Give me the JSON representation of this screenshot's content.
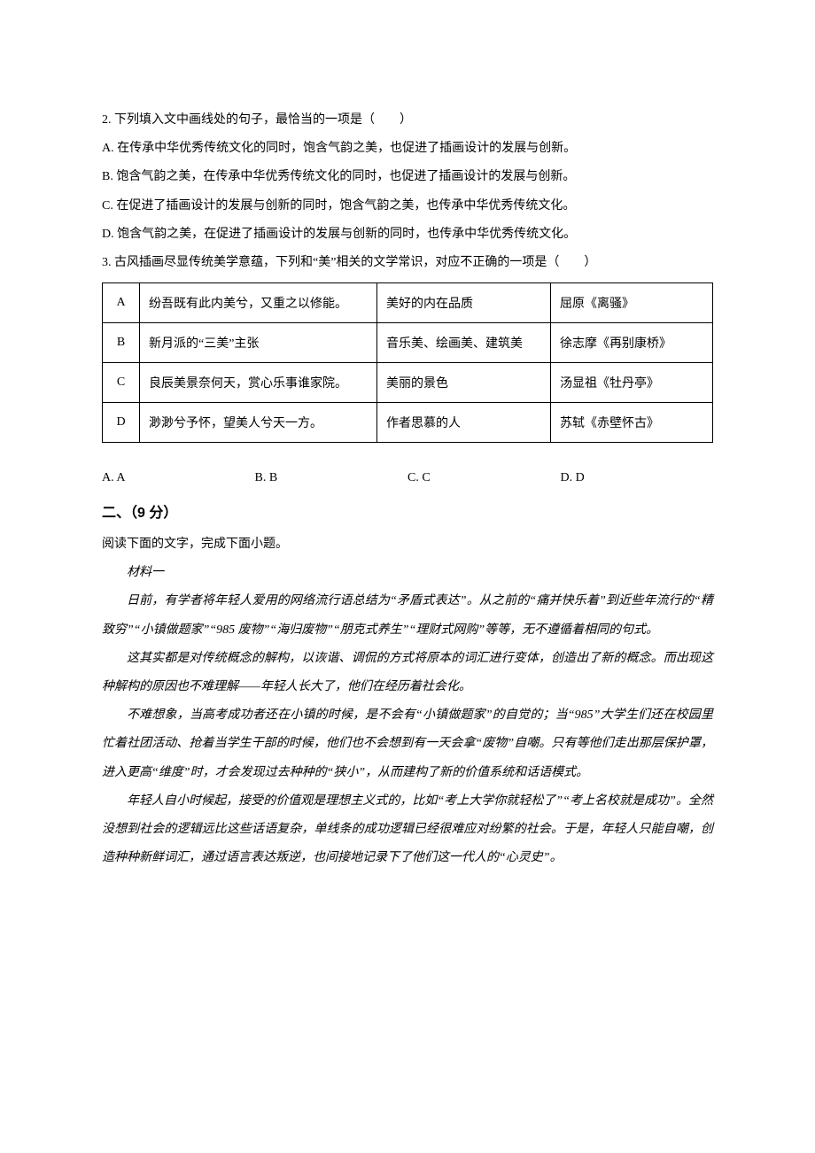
{
  "q2": {
    "stem": "2. 下列填入文中画线处的句子，最恰当的一项是（　　）",
    "a": "A. 在传承中华优秀传统文化的同时，饱含气韵之美，也促进了插画设计的发展与创新。",
    "b": "B. 饱含气韵之美，在传承中华优秀传统文化的同时，也促进了插画设计的发展与创新。",
    "c": "C. 在促进了插画设计的发展与创新的同时，饱含气韵之美，也传承中华优秀传统文化。",
    "d": "D. 饱含气韵之美，在促进了插画设计的发展与创新的同时，也传承中华优秀传统文化。"
  },
  "q3": {
    "stem": "3. 古风插画尽显传统美学意蕴，下列和“美”相关的文学常识，对应不正确的一项是（　　）",
    "rows": [
      {
        "label": "A",
        "text": "纷吾既有此内美兮，又重之以修能。",
        "meaning": "美好的内在品质",
        "source": "屈原《离骚》"
      },
      {
        "label": "B",
        "text": "新月派的“三美”主张",
        "meaning": "音乐美、绘画美、建筑美",
        "source": "徐志摩《再别康桥》"
      },
      {
        "label": "C",
        "text": "良辰美景奈何天，赏心乐事谁家院。",
        "meaning": "美丽的景色",
        "source": "汤显祖《牡丹亭》"
      },
      {
        "label": "D",
        "text": "渺渺兮予怀，望美人兮天一方。",
        "meaning": "作者思慕的人",
        "source": "苏轼《赤壁怀古》"
      }
    ],
    "opts": {
      "a": "A. A",
      "b": "B. B",
      "c": "C. C",
      "d": "D. D"
    }
  },
  "section2": {
    "heading": "二、（9 分）",
    "intro": "阅读下面的文字，完成下面小题。",
    "mat_label": "材料一",
    "p1": "日前，有学者将年轻人爱用的网络流行语总结为“矛盾式表达”。从之前的“痛并快乐着”到近些年流行的“精致穷”“小镇做题家”“985 废物”“海归废物”“朋克式养生”“理财式网购”等等，无不遵循着相同的句式。",
    "p2": "这其实都是对传统概念的解构，以诙谐、调侃的方式将原本的词汇进行变体，创造出了新的概念。而出现这种解构的原因也不难理解——年轻人长大了，他们在经历着社会化。",
    "p3": "不难想象，当高考成功者还在小镇的时候，是不会有“小镇做题家”的自觉的；当“985”大学生们还在校园里忙着社团活动、抢着当学生干部的时候，他们也不会想到有一天会拿“废物”自嘲。只有等他们走出那层保护罩，进入更高“维度”时，才会发现过去种种的“狭小”，从而建构了新的价值系统和话语模式。",
    "p4": "年轻人自小时候起，接受的价值观是理想主义式的，比如“考上大学你就轻松了”“考上名校就是成功”。全然没想到社会的逻辑远比这些话语复杂，单线条的成功逻辑已经很难应对纷繁的社会。于是，年轻人只能自嘲，创造种种新鲜词汇，通过语言表达叛逆，也间接地记录下了他们这一代人的“心灵史”。"
  },
  "style": {
    "body_fontsize": 14,
    "heading_fontsize": 16,
    "text_color": "#000000",
    "background_color": "#ffffff",
    "border_color": "#000000",
    "line_height": 2.3,
    "col_widths": {
      "label": 42,
      "text": 268,
      "meaning": 196
    }
  }
}
